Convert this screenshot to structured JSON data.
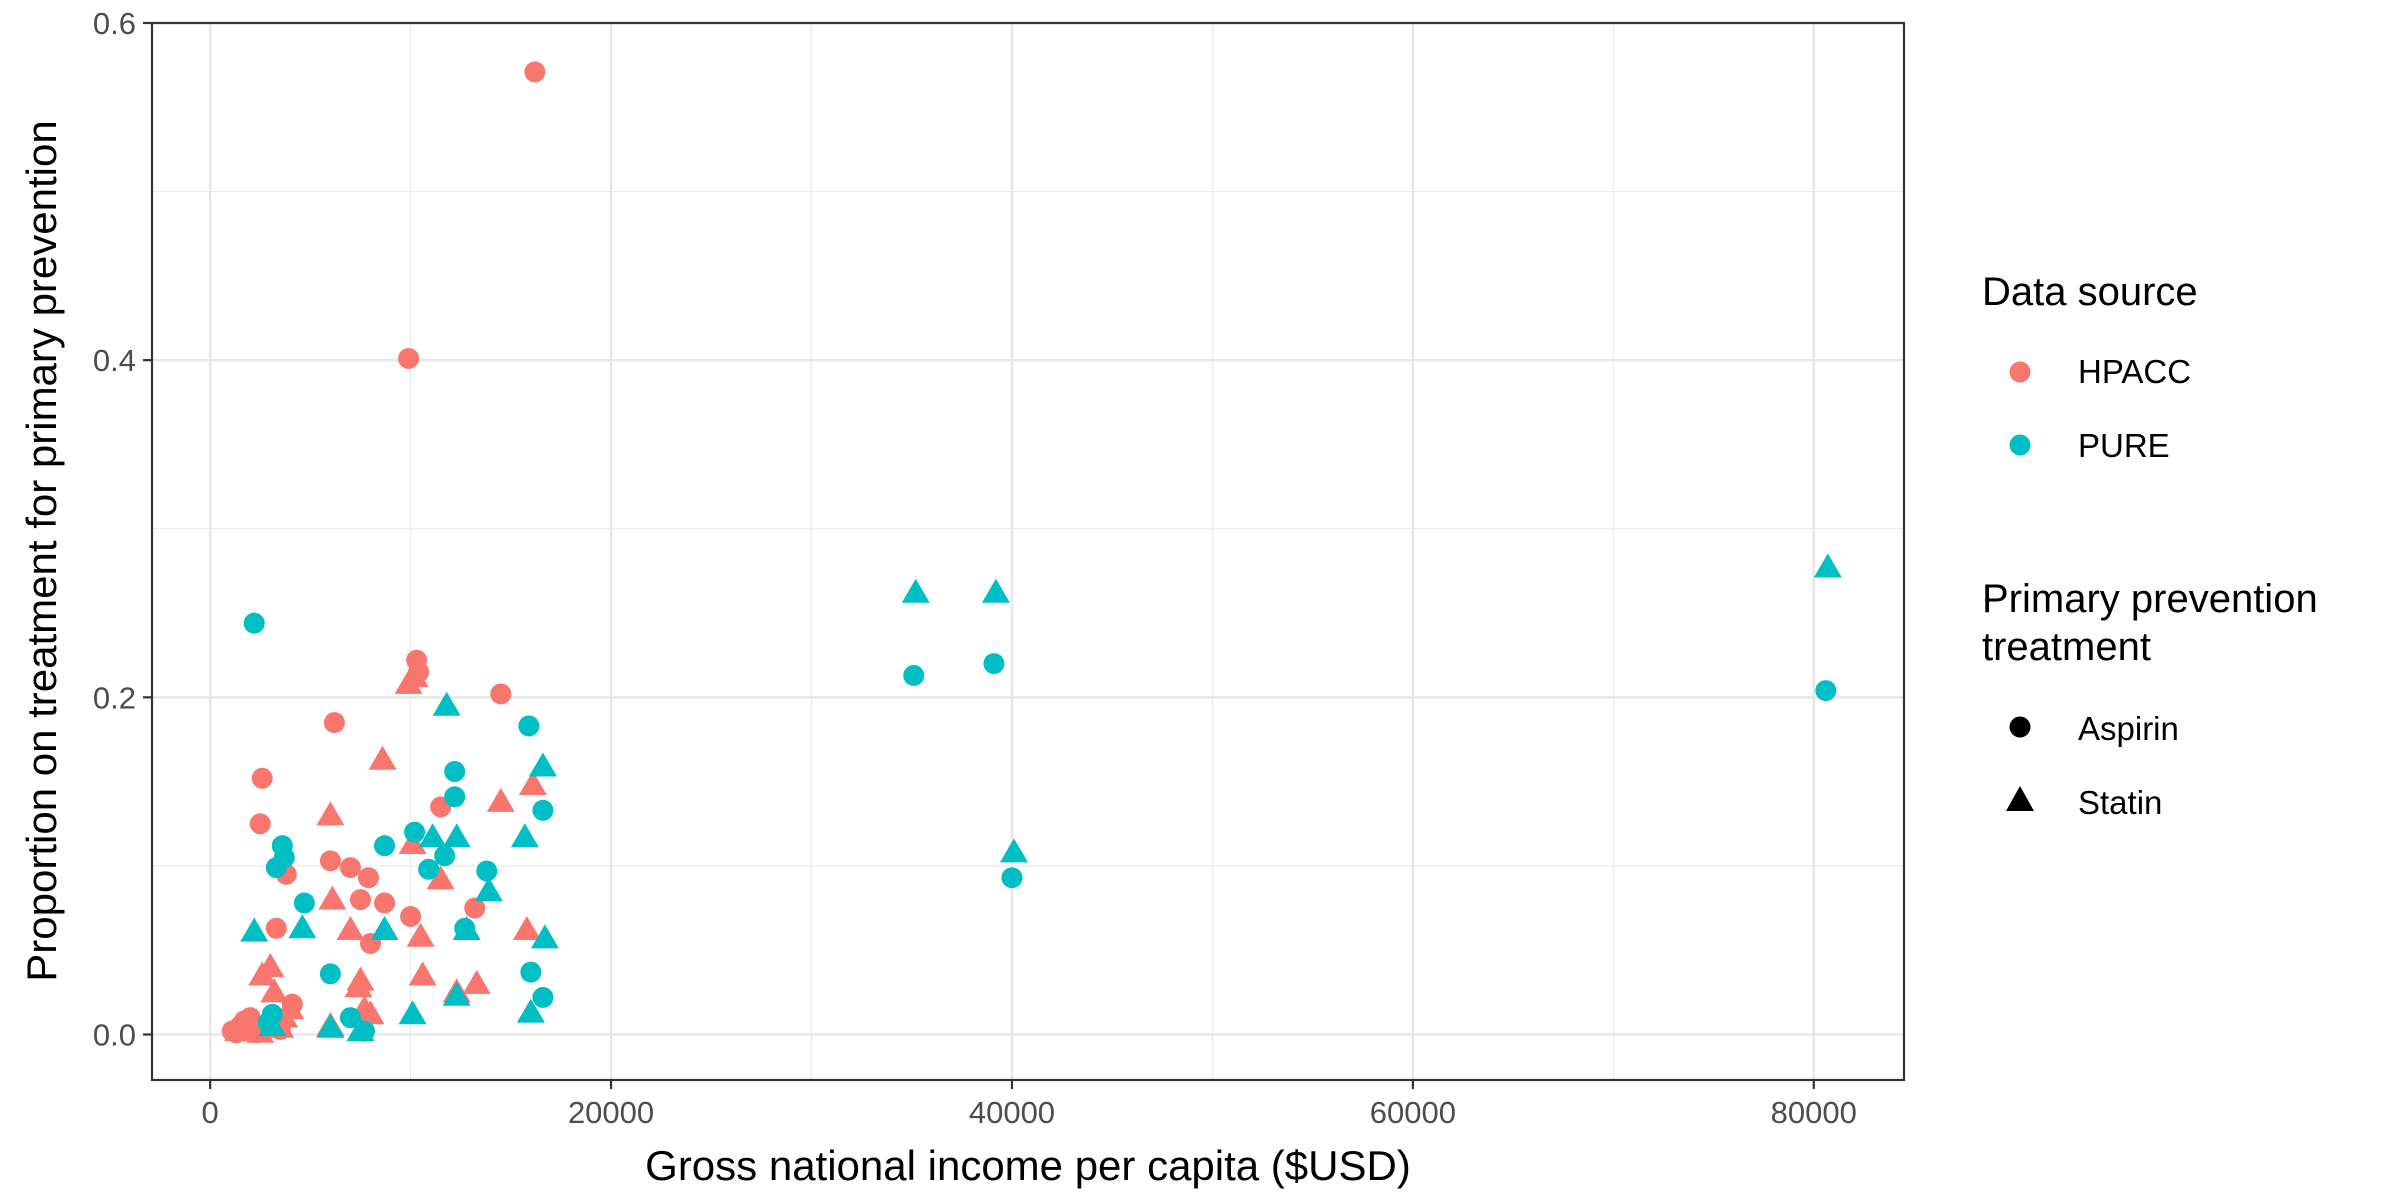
{
  "chart_data": {
    "type": "scatter",
    "xlabel": "Gross national income per capita  ($USD)",
    "ylabel": "Proportion on treatment for primary prevention",
    "xlim": [
      -2900,
      84500
    ],
    "ylim": [
      -0.027,
      0.6
    ],
    "x_ticks": [
      0,
      20000,
      40000,
      60000,
      80000
    ],
    "y_ticks": [
      0.0,
      0.2,
      0.4,
      0.6
    ],
    "x_tick_labels": [
      "0",
      "20000",
      "40000",
      "60000",
      "80000"
    ],
    "y_tick_labels": [
      "0.0",
      "0.2",
      "0.4",
      "0.6"
    ],
    "grid": true,
    "legend_position": "right",
    "colors": {
      "HPACC": "#F8766D",
      "PURE": "#00BFC4"
    },
    "legends": {
      "color": {
        "title": "Data source",
        "items": [
          "HPACC",
          "PURE"
        ]
      },
      "shape": {
        "title_lines": [
          "Primary prevention",
          "treatment"
        ],
        "items": [
          "Aspirin",
          "Statin"
        ]
      }
    },
    "series": [
      {
        "source": "HPACC",
        "treatment": "Aspirin",
        "points": [
          [
            16200,
            0.571
          ],
          [
            9900,
            0.401
          ],
          [
            10300,
            0.222
          ],
          [
            10400,
            0.215
          ],
          [
            6200,
            0.185
          ],
          [
            14500,
            0.202
          ],
          [
            2600,
            0.152
          ],
          [
            2500,
            0.125
          ],
          [
            11500,
            0.135
          ],
          [
            6000,
            0.103
          ],
          [
            7000,
            0.099
          ],
          [
            3800,
            0.095
          ],
          [
            7900,
            0.093
          ],
          [
            7500,
            0.08
          ],
          [
            8700,
            0.078
          ],
          [
            13200,
            0.075
          ],
          [
            10000,
            0.07
          ],
          [
            3300,
            0.063
          ],
          [
            8000,
            0.054
          ],
          [
            4100,
            0.018
          ],
          [
            1100,
            0.002
          ],
          [
            1500,
            0.005
          ],
          [
            1800,
            0.003
          ],
          [
            2000,
            0.01
          ],
          [
            2300,
            0.001
          ],
          [
            2600,
            0.002
          ],
          [
            2900,
            0.006
          ],
          [
            3500,
            0.003
          ],
          [
            1300,
            0.001
          ],
          [
            1700,
            0.008
          ],
          [
            2100,
            0.004
          ]
        ]
      },
      {
        "source": "HPACC",
        "treatment": "Statin",
        "points": [
          [
            8600,
            0.163
          ],
          [
            9900,
            0.208
          ],
          [
            10200,
            0.212
          ],
          [
            16100,
            0.148
          ],
          [
            14500,
            0.138
          ],
          [
            6000,
            0.13
          ],
          [
            10100,
            0.113
          ],
          [
            11500,
            0.092
          ],
          [
            6100,
            0.08
          ],
          [
            7500,
            0.032
          ],
          [
            3000,
            0.04
          ],
          [
            2600,
            0.035
          ],
          [
            3200,
            0.025
          ],
          [
            10500,
            0.058
          ],
          [
            7000,
            0.062
          ],
          [
            15800,
            0.062
          ],
          [
            12300,
            0.025
          ],
          [
            13300,
            0.03
          ],
          [
            10600,
            0.035
          ],
          [
            7400,
            0.028
          ],
          [
            8000,
            0.012
          ],
          [
            6000,
            0.005
          ],
          [
            3700,
            0.01
          ],
          [
            4000,
            0.015
          ],
          [
            1400,
            0.002
          ],
          [
            2200,
            0.003
          ],
          [
            3500,
            0.004
          ],
          [
            7700,
            0.015
          ],
          [
            1800,
            0.002
          ],
          [
            2500,
            0.001
          ]
        ]
      },
      {
        "source": "PURE",
        "treatment": "Aspirin",
        "points": [
          [
            2200,
            0.244
          ],
          [
            35100,
            0.213
          ],
          [
            39100,
            0.22
          ],
          [
            80600,
            0.204
          ],
          [
            40000,
            0.093
          ],
          [
            15900,
            0.183
          ],
          [
            12200,
            0.156
          ],
          [
            12200,
            0.141
          ],
          [
            16600,
            0.133
          ],
          [
            10200,
            0.12
          ],
          [
            8700,
            0.112
          ],
          [
            3600,
            0.112
          ],
          [
            3700,
            0.105
          ],
          [
            3300,
            0.099
          ],
          [
            11700,
            0.106
          ],
          [
            10900,
            0.098
          ],
          [
            13800,
            0.097
          ],
          [
            4700,
            0.078
          ],
          [
            12700,
            0.063
          ],
          [
            16000,
            0.037
          ],
          [
            16600,
            0.022
          ],
          [
            6000,
            0.036
          ],
          [
            2900,
            0.007
          ],
          [
            3100,
            0.012
          ],
          [
            7000,
            0.01
          ],
          [
            7700,
            0.002
          ]
        ]
      },
      {
        "source": "PURE",
        "treatment": "Statin",
        "points": [
          [
            35200,
            0.262
          ],
          [
            39200,
            0.262
          ],
          [
            80700,
            0.277
          ],
          [
            40100,
            0.108
          ],
          [
            11800,
            0.195
          ],
          [
            16600,
            0.159
          ],
          [
            11100,
            0.117
          ],
          [
            12300,
            0.117
          ],
          [
            15700,
            0.117
          ],
          [
            13900,
            0.085
          ],
          [
            4600,
            0.063
          ],
          [
            2200,
            0.061
          ],
          [
            8700,
            0.062
          ],
          [
            12800,
            0.062
          ],
          [
            16700,
            0.057
          ],
          [
            12300,
            0.023
          ],
          [
            10100,
            0.012
          ],
          [
            16000,
            0.013
          ],
          [
            7500,
            0.002
          ],
          [
            6000,
            0.004
          ],
          [
            3100,
            0.005
          ]
        ]
      }
    ]
  }
}
